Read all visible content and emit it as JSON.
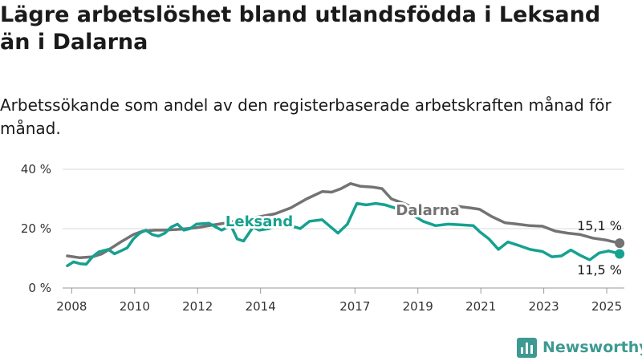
{
  "title": "Lägre arbetslöshet bland utlandsfödda i Leksand än i Dalarna",
  "subtitle": "Arbetssökande som andel av den registerbaserade arbetskraften månad för månad.",
  "brand": {
    "name": "Newsworthy",
    "color": "#3d9a92"
  },
  "chart_data": {
    "type": "line",
    "title": "Lägre arbetslöshet bland utlandsfödda i Leksand än i Dalarna",
    "subtitle": "Arbetssökande som andel av den registerbaserade arbetskraften månad för månad.",
    "xlabel": "",
    "ylabel": "",
    "x_ticks": [
      "2008",
      "2010",
      "2012",
      "2014",
      "2017",
      "2019",
      "2021",
      "2023",
      "2025"
    ],
    "y_ticks": [
      "0 %",
      "20 %",
      "40 %"
    ],
    "ylim": [
      0,
      40
    ],
    "xlim": [
      2007.75,
      2025.6
    ],
    "grid": true,
    "series": [
      {
        "name": "Dalarna",
        "color": "#737373",
        "end_label": "15,1 %",
        "points": [
          [
            2007.9,
            10.8
          ],
          [
            2008.3,
            10.2
          ],
          [
            2008.7,
            10.5
          ],
          [
            2009.0,
            11.5
          ],
          [
            2009.3,
            13.5
          ],
          [
            2009.6,
            15.5
          ],
          [
            2010.0,
            18.0
          ],
          [
            2010.3,
            19.2
          ],
          [
            2010.7,
            19.5
          ],
          [
            2011.0,
            19.5
          ],
          [
            2011.5,
            19.8
          ],
          [
            2012.0,
            20.3
          ],
          [
            2012.5,
            21.2
          ],
          [
            2013.0,
            22.0
          ],
          [
            2013.5,
            23.0
          ],
          [
            2014.0,
            24.0
          ],
          [
            2014.5,
            25.0
          ],
          [
            2015.0,
            27.0
          ],
          [
            2015.5,
            30.0
          ],
          [
            2016.0,
            32.5
          ],
          [
            2016.3,
            32.3
          ],
          [
            2016.6,
            33.5
          ],
          [
            2016.9,
            35.2
          ],
          [
            2017.2,
            34.3
          ],
          [
            2017.6,
            34.0
          ],
          [
            2017.9,
            33.5
          ],
          [
            2018.2,
            30.0
          ],
          [
            2018.6,
            28.5
          ],
          [
            2018.9,
            27.0
          ],
          [
            2019.3,
            27.5
          ],
          [
            2019.7,
            27.0
          ],
          [
            2020.0,
            27.2
          ],
          [
            2020.3,
            27.5
          ],
          [
            2020.7,
            27.0
          ],
          [
            2021.0,
            26.5
          ],
          [
            2021.4,
            24.0
          ],
          [
            2021.8,
            22.0
          ],
          [
            2022.2,
            21.5
          ],
          [
            2022.6,
            21.0
          ],
          [
            2023.0,
            20.8
          ],
          [
            2023.4,
            19.2
          ],
          [
            2023.8,
            18.5
          ],
          [
            2024.2,
            18.0
          ],
          [
            2024.6,
            16.8
          ],
          [
            2025.0,
            16.2
          ],
          [
            2025.45,
            15.1
          ]
        ]
      },
      {
        "name": "Leksand",
        "color": "#16a190",
        "end_label": "11,5 %",
        "points": [
          [
            2007.9,
            7.5
          ],
          [
            2008.1,
            8.8
          ],
          [
            2008.3,
            8.2
          ],
          [
            2008.5,
            8.0
          ],
          [
            2008.7,
            10.5
          ],
          [
            2008.9,
            12.2
          ],
          [
            2009.2,
            13.0
          ],
          [
            2009.4,
            11.5
          ],
          [
            2009.6,
            12.5
          ],
          [
            2009.8,
            13.5
          ],
          [
            2010.0,
            16.5
          ],
          [
            2010.2,
            18.5
          ],
          [
            2010.4,
            19.5
          ],
          [
            2010.6,
            18.0
          ],
          [
            2010.8,
            17.5
          ],
          [
            2011.0,
            18.5
          ],
          [
            2011.2,
            20.5
          ],
          [
            2011.4,
            21.5
          ],
          [
            2011.6,
            19.5
          ],
          [
            2011.8,
            20.0
          ],
          [
            2012.0,
            21.5
          ],
          [
            2012.4,
            21.8
          ],
          [
            2012.8,
            19.5
          ],
          [
            2013.1,
            21.0
          ],
          [
            2013.3,
            16.5
          ],
          [
            2013.5,
            15.8
          ],
          [
            2013.8,
            20.5
          ],
          [
            2014.0,
            19.5
          ],
          [
            2014.3,
            20.0
          ],
          [
            2014.6,
            21.5
          ],
          [
            2015.0,
            21.0
          ],
          [
            2015.3,
            20.0
          ],
          [
            2015.6,
            22.5
          ],
          [
            2016.0,
            23.0
          ],
          [
            2016.5,
            18.5
          ],
          [
            2016.8,
            21.5
          ],
          [
            2017.1,
            28.5
          ],
          [
            2017.4,
            28.0
          ],
          [
            2017.7,
            28.5
          ],
          [
            2018.0,
            28.0
          ],
          [
            2018.3,
            27.0
          ],
          [
            2018.6,
            25.0
          ],
          [
            2018.9,
            24.5
          ],
          [
            2019.2,
            22.5
          ],
          [
            2019.6,
            21.0
          ],
          [
            2020.0,
            21.5
          ],
          [
            2020.4,
            21.3
          ],
          [
            2020.8,
            21.0
          ],
          [
            2021.0,
            19.0
          ],
          [
            2021.3,
            16.5
          ],
          [
            2021.6,
            13.0
          ],
          [
            2021.9,
            15.5
          ],
          [
            2022.2,
            14.5
          ],
          [
            2022.6,
            13.0
          ],
          [
            2023.0,
            12.3
          ],
          [
            2023.3,
            10.5
          ],
          [
            2023.6,
            10.8
          ],
          [
            2023.9,
            12.8
          ],
          [
            2024.2,
            11.0
          ],
          [
            2024.5,
            9.5
          ],
          [
            2024.8,
            11.8
          ],
          [
            2025.1,
            12.5
          ],
          [
            2025.45,
            11.5
          ]
        ]
      }
    ]
  }
}
